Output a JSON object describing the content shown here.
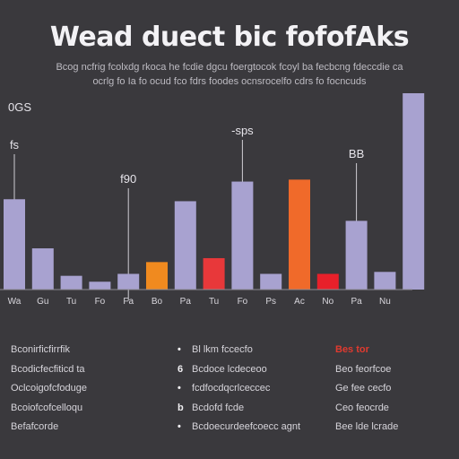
{
  "title": "Wead duect bic fofofAks",
  "subtitle_lines": [
    "Bcog ncfrig fcolxdg rkoca he fcdie dgcu foergtocok fcoyl ba fecbcng fdeccdie ca",
    "ocrlg fo Ia fo ocud fco fdrs foodes ocnsrocelfo cdrs fo focncuds"
  ],
  "chart_data": {
    "type": "bar",
    "title": "Wead duect bic fofofAks",
    "ylabel": "",
    "ylim": [
      0,
      100
    ],
    "categories": [
      "Wa",
      "Gu",
      "Tu",
      "Fo",
      "Fa",
      "Bo",
      "Pa",
      "Tu",
      "Fo",
      "Ps",
      "Ac",
      "No",
      "Pa",
      "Nu"
    ],
    "values": [
      46,
      21,
      7,
      4,
      8,
      14,
      45,
      16,
      55,
      8,
      56,
      8,
      35,
      9
    ],
    "extra_bar": {
      "category": "",
      "value": 100
    },
    "colors": [
      "#a8a2d0",
      "#a8a2d0",
      "#a8a2d0",
      "#a8a2d0",
      "#a8a2d0",
      "#f08a1f",
      "#a8a2d0",
      "#e8383a",
      "#a8a2d0",
      "#a8a2d0",
      "#f06a2a",
      "#e8202a",
      "#a8a2d0",
      "#a8a2d0"
    ],
    "extra_color": "#a8a2d0",
    "annotations": [
      {
        "text": "0GS",
        "bar": -1
      },
      {
        "text": "fs",
        "bar": 0
      },
      {
        "text": "f90",
        "bar": 4
      },
      {
        "text": "-sps",
        "bar": 8
      },
      {
        "text": "BB",
        "bar": 12
      }
    ],
    "grid": false,
    "legend": "none"
  },
  "notes": {
    "left": [
      "Bconirficfirrfik",
      "Bcodicfecfiticd ta",
      "Oclcoigofcfoduge",
      "Bcoiofcofcelloqu",
      "Befafcorde"
    ],
    "middle": [
      {
        "bullet": "•",
        "text": "Bl lkm fccecfo"
      },
      {
        "bullet": "6",
        "text": "Bcdoce lcdeceoo"
      },
      {
        "bullet": "•",
        "text": "fcdfocdqcrlceccec"
      },
      {
        "bullet": "b",
        "text": "Bcdofd fcde"
      },
      {
        "bullet": "•",
        "text": "Bcdoecurdeefcoecc agnt"
      }
    ],
    "right_header": "Bes tor",
    "right": [
      "Beo feorfcoe",
      "Ge fee cecfo",
      "Ceo feocrde",
      "Bee lde lcrade"
    ]
  }
}
